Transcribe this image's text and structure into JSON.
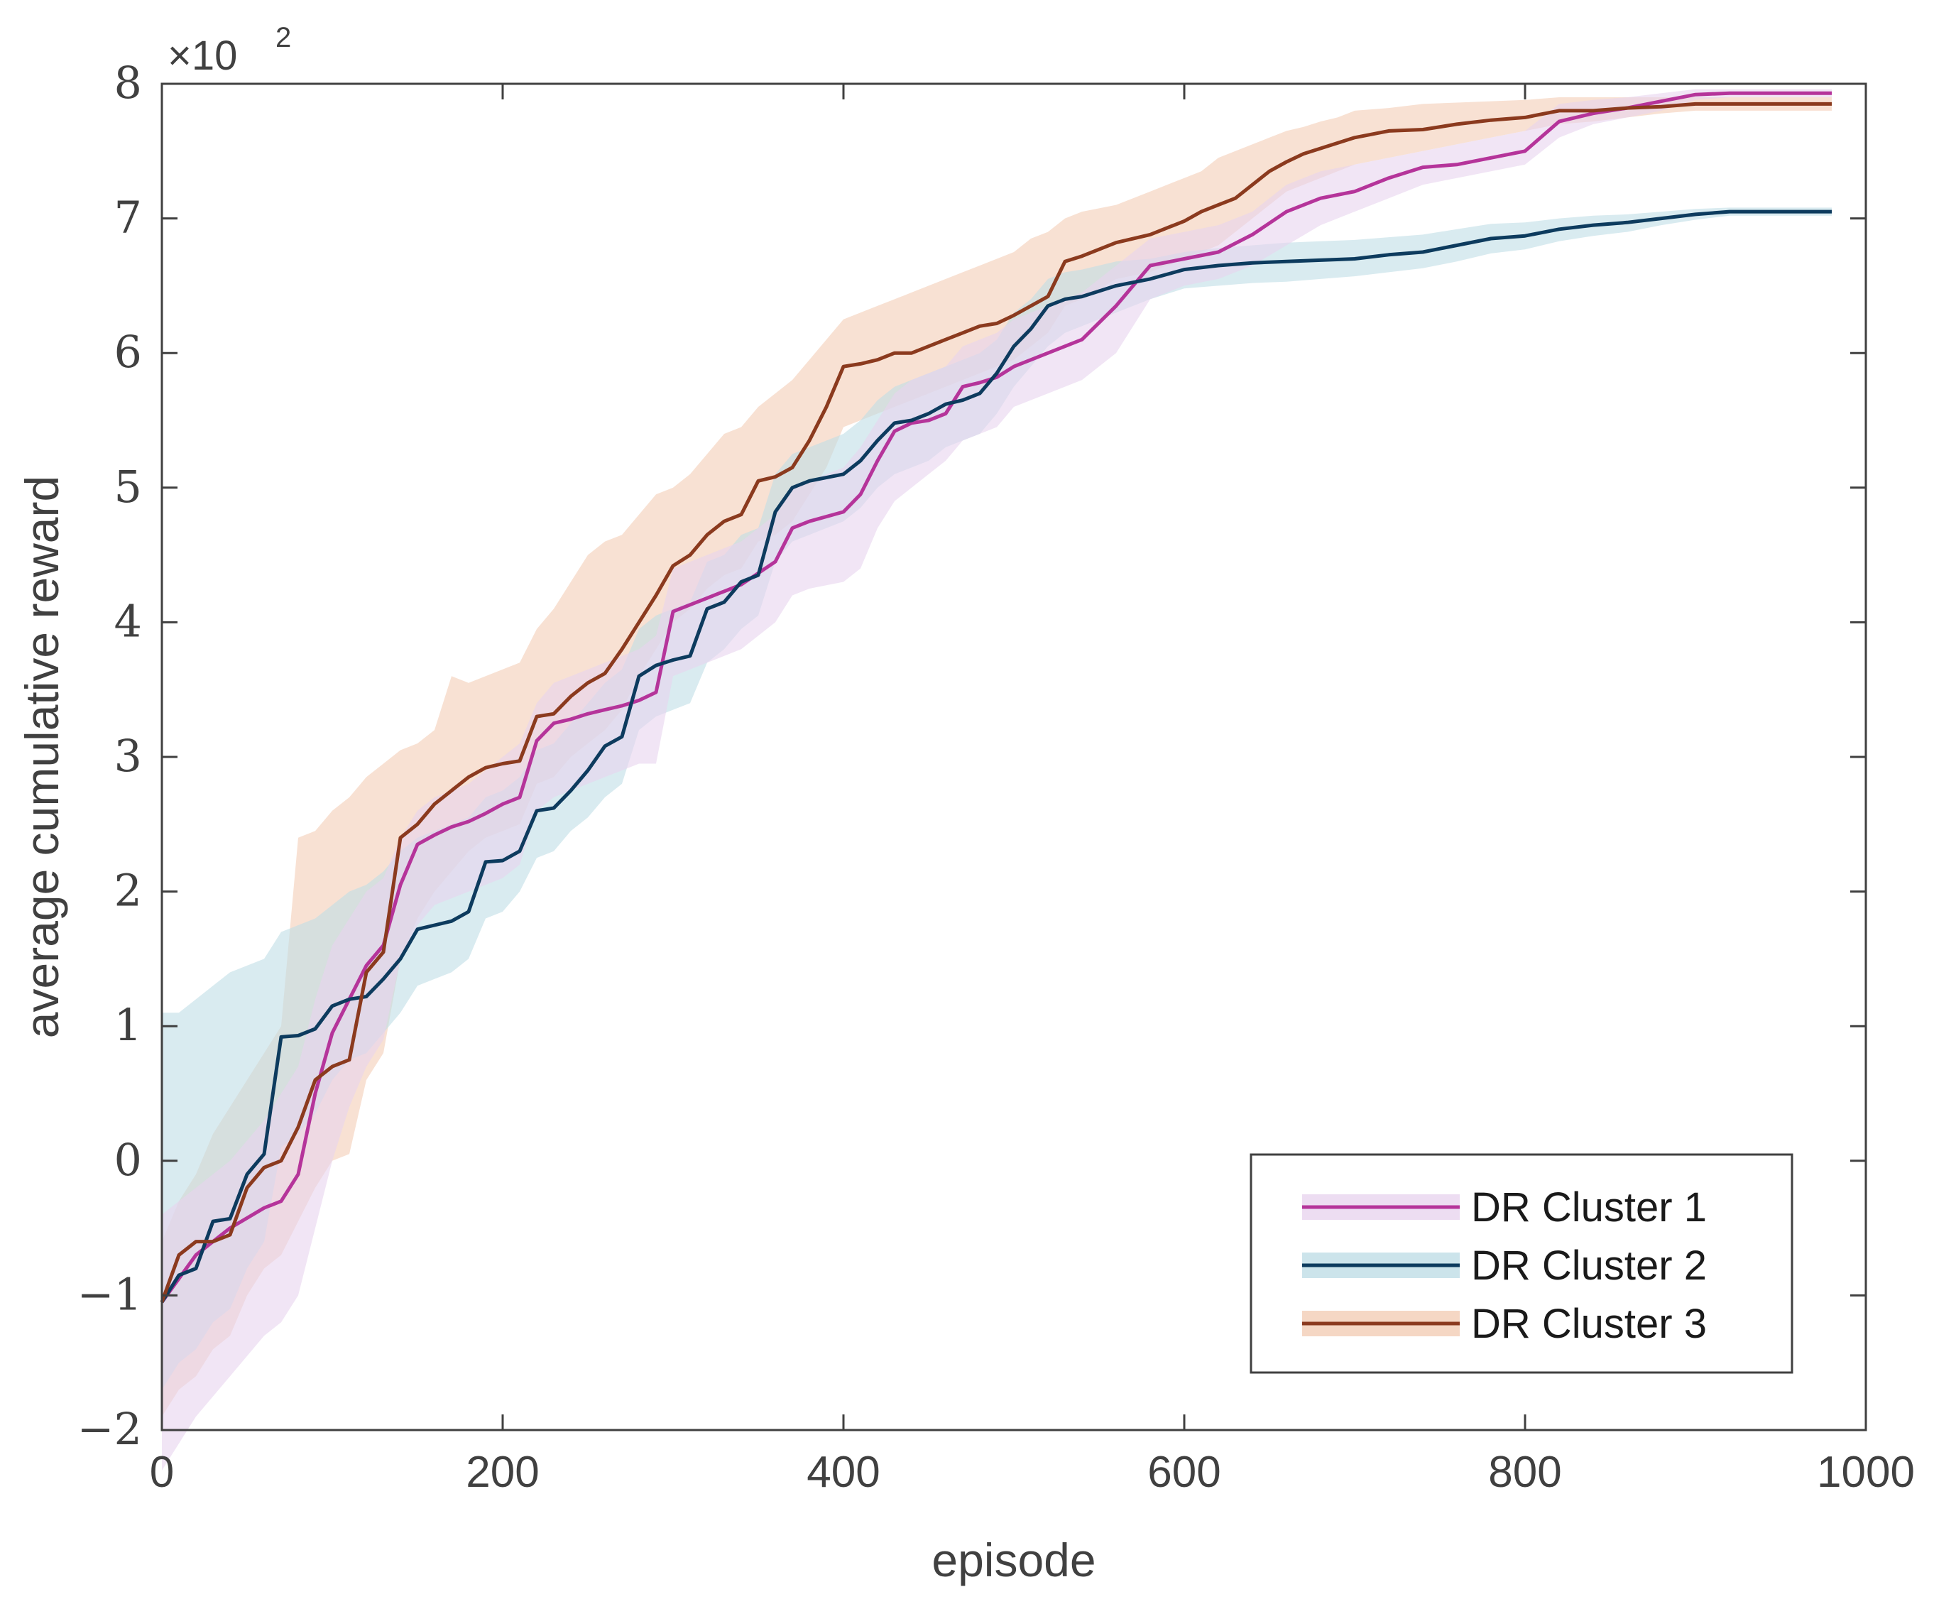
{
  "chart_data": {
    "type": "line",
    "title": "",
    "xlabel": "episode",
    "ylabel": "average cumulative reward",
    "y_multiplier_label": "×10",
    "y_multiplier_exponent": "2",
    "xlim": [
      0,
      1000
    ],
    "ylim": [
      -2,
      8
    ],
    "xticks": [
      0,
      200,
      400,
      600,
      800,
      1000
    ],
    "xtick_labels": [
      "0",
      "200",
      "400",
      "600",
      "800",
      "1000"
    ],
    "yticks": [
      -2,
      -1,
      0,
      1,
      2,
      3,
      4,
      5,
      6,
      7,
      8
    ],
    "ytick_labels": [
      "−2",
      "−1",
      "0",
      "1",
      "2",
      "3",
      "4",
      "5",
      "6",
      "7",
      "8"
    ],
    "grid": false,
    "legend_position": "bottom-right",
    "series": [
      {
        "name": "DR Cluster 1",
        "color": "#b5349a",
        "band_color": "#e8d4ef",
        "x": [
          0,
          20,
          40,
          60,
          70,
          80,
          90,
          100,
          110,
          120,
          130,
          140,
          150,
          160,
          170,
          180,
          190,
          200,
          210,
          220,
          230,
          240,
          250,
          260,
          270,
          280,
          290,
          300,
          320,
          340,
          360,
          370,
          380,
          400,
          410,
          420,
          430,
          440,
          450,
          460,
          470,
          480,
          490,
          500,
          520,
          540,
          560,
          580,
          600,
          620,
          640,
          660,
          680,
          700,
          720,
          740,
          760,
          780,
          800,
          820,
          840,
          860,
          880,
          900,
          920,
          940,
          960,
          980
        ],
        "values": [
          -1.05,
          -0.7,
          -0.5,
          -0.35,
          -0.3,
          -0.1,
          0.5,
          0.95,
          1.2,
          1.45,
          1.6,
          2.05,
          2.35,
          2.42,
          2.48,
          2.52,
          2.58,
          2.65,
          2.7,
          3.12,
          3.25,
          3.28,
          3.32,
          3.35,
          3.38,
          3.42,
          3.48,
          4.08,
          4.18,
          4.28,
          4.45,
          4.7,
          4.75,
          4.82,
          4.95,
          5.2,
          5.42,
          5.48,
          5.5,
          5.55,
          5.75,
          5.78,
          5.82,
          5.9,
          6.0,
          6.1,
          6.35,
          6.65,
          6.7,
          6.75,
          6.88,
          7.05,
          7.15,
          7.2,
          7.3,
          7.38,
          7.4,
          7.45,
          7.5,
          7.72,
          7.78,
          7.82,
          7.87,
          7.92,
          7.93,
          7.93,
          7.93,
          7.93
        ],
        "band_lower": [
          -2.3,
          -1.9,
          -1.6,
          -1.3,
          -1.2,
          -1.0,
          -0.5,
          0.0,
          0.4,
          0.7,
          0.9,
          1.5,
          1.75,
          1.9,
          1.95,
          2.0,
          2.05,
          2.1,
          2.2,
          2.6,
          2.7,
          2.75,
          2.8,
          2.85,
          2.9,
          2.95,
          2.95,
          3.6,
          3.7,
          3.8,
          4.0,
          4.2,
          4.25,
          4.3,
          4.4,
          4.7,
          4.9,
          5.0,
          5.1,
          5.2,
          5.35,
          5.4,
          5.45,
          5.6,
          5.7,
          5.8,
          6.0,
          6.4,
          6.5,
          6.55,
          6.65,
          6.8,
          6.95,
          7.05,
          7.15,
          7.25,
          7.3,
          7.35,
          7.4,
          7.6,
          7.7,
          7.75,
          7.8,
          7.88,
          7.9,
          7.9,
          7.9,
          7.9
        ],
        "band_upper": [
          -0.4,
          -0.2,
          0.0,
          0.3,
          0.5,
          0.7,
          1.2,
          1.6,
          1.8,
          2.0,
          2.1,
          2.4,
          2.6,
          2.7,
          2.75,
          2.8,
          2.9,
          3.0,
          3.1,
          3.4,
          3.55,
          3.6,
          3.65,
          3.7,
          3.75,
          3.8,
          3.9,
          4.4,
          4.5,
          4.6,
          4.8,
          5.0,
          5.05,
          5.15,
          5.3,
          5.5,
          5.7,
          5.8,
          5.85,
          5.9,
          6.05,
          6.1,
          6.15,
          6.25,
          6.35,
          6.45,
          6.65,
          6.85,
          6.9,
          6.95,
          7.05,
          7.25,
          7.35,
          7.4,
          7.45,
          7.5,
          7.55,
          7.6,
          7.65,
          7.85,
          7.88,
          7.9,
          7.93,
          7.96,
          7.96,
          7.96,
          7.96,
          7.96
        ]
      },
      {
        "name": "DR Cluster 2",
        "color": "#0d3b5e",
        "band_color": "#bfdde6",
        "x": [
          0,
          10,
          20,
          30,
          40,
          50,
          60,
          70,
          80,
          90,
          100,
          110,
          120,
          130,
          140,
          150,
          160,
          170,
          180,
          190,
          200,
          210,
          220,
          230,
          240,
          250,
          260,
          270,
          280,
          290,
          300,
          310,
          320,
          330,
          340,
          350,
          360,
          370,
          380,
          400,
          410,
          420,
          430,
          440,
          450,
          460,
          470,
          480,
          490,
          500,
          510,
          520,
          530,
          540,
          560,
          580,
          600,
          620,
          640,
          660,
          680,
          700,
          720,
          740,
          760,
          780,
          800,
          820,
          840,
          860,
          880,
          900,
          920,
          940,
          960,
          980
        ],
        "values": [
          -1.05,
          -0.85,
          -0.8,
          -0.45,
          -0.43,
          -0.1,
          0.05,
          0.92,
          0.93,
          0.98,
          1.15,
          1.2,
          1.22,
          1.35,
          1.5,
          1.72,
          1.75,
          1.78,
          1.85,
          2.22,
          2.23,
          2.3,
          2.6,
          2.62,
          2.75,
          2.9,
          3.08,
          3.15,
          3.6,
          3.68,
          3.72,
          3.75,
          4.1,
          4.15,
          4.3,
          4.35,
          4.82,
          5.0,
          5.05,
          5.1,
          5.2,
          5.35,
          5.48,
          5.5,
          5.55,
          5.62,
          5.65,
          5.7,
          5.85,
          6.05,
          6.18,
          6.35,
          6.4,
          6.42,
          6.5,
          6.55,
          6.62,
          6.65,
          6.67,
          6.68,
          6.69,
          6.7,
          6.73,
          6.75,
          6.8,
          6.85,
          6.87,
          6.92,
          6.95,
          6.97,
          7.0,
          7.03,
          7.05,
          7.05,
          7.05,
          7.05
        ],
        "band_lower": [
          -1.7,
          -1.5,
          -1.4,
          -1.2,
          -1.1,
          -0.8,
          -0.6,
          0.1,
          0.2,
          0.35,
          0.6,
          0.75,
          0.8,
          0.95,
          1.1,
          1.3,
          1.35,
          1.4,
          1.5,
          1.8,
          1.85,
          2.0,
          2.25,
          2.3,
          2.45,
          2.55,
          2.7,
          2.8,
          3.2,
          3.3,
          3.35,
          3.4,
          3.7,
          3.8,
          3.95,
          4.05,
          4.45,
          4.6,
          4.65,
          4.75,
          4.85,
          5.0,
          5.1,
          5.15,
          5.2,
          5.3,
          5.35,
          5.4,
          5.55,
          5.75,
          5.9,
          6.05,
          6.15,
          6.2,
          6.3,
          6.4,
          6.48,
          6.5,
          6.52,
          6.53,
          6.55,
          6.57,
          6.6,
          6.63,
          6.68,
          6.74,
          6.77,
          6.83,
          6.87,
          6.9,
          6.95,
          6.99,
          7.02,
          7.02,
          7.02,
          7.02
        ],
        "band_upper": [
          1.1,
          1.1,
          1.2,
          1.3,
          1.4,
          1.45,
          1.5,
          1.7,
          1.75,
          1.8,
          1.9,
          2.0,
          2.05,
          2.15,
          2.3,
          2.4,
          2.45,
          2.5,
          2.55,
          2.7,
          2.75,
          2.85,
          3.05,
          3.1,
          3.25,
          3.4,
          3.55,
          3.65,
          3.95,
          4.05,
          4.1,
          4.15,
          4.45,
          4.5,
          4.65,
          4.7,
          5.1,
          5.25,
          5.3,
          5.4,
          5.5,
          5.65,
          5.75,
          5.8,
          5.85,
          5.9,
          5.95,
          6.0,
          6.1,
          6.3,
          6.4,
          6.55,
          6.6,
          6.62,
          6.68,
          6.7,
          6.75,
          6.78,
          6.8,
          6.82,
          6.83,
          6.84,
          6.86,
          6.88,
          6.92,
          6.96,
          6.97,
          7.0,
          7.02,
          7.03,
          7.05,
          7.07,
          7.08,
          7.08,
          7.08,
          7.08
        ]
      },
      {
        "name": "DR Cluster 3",
        "color": "#8b3a1e",
        "band_color": "#f3cdb5",
        "x": [
          0,
          10,
          20,
          30,
          40,
          50,
          60,
          70,
          80,
          90,
          100,
          110,
          120,
          130,
          140,
          150,
          160,
          170,
          180,
          190,
          200,
          210,
          220,
          230,
          240,
          250,
          260,
          270,
          280,
          290,
          300,
          310,
          320,
          330,
          340,
          350,
          360,
          370,
          380,
          390,
          400,
          410,
          420,
          430,
          440,
          450,
          460,
          470,
          480,
          490,
          500,
          510,
          520,
          530,
          540,
          560,
          580,
          600,
          610,
          620,
          630,
          640,
          650,
          660,
          670,
          680,
          690,
          700,
          720,
          740,
          760,
          780,
          800,
          820,
          840,
          860,
          880,
          900,
          920,
          940,
          960,
          980
        ],
        "values": [
          -1.05,
          -0.7,
          -0.6,
          -0.6,
          -0.55,
          -0.2,
          -0.05,
          0.0,
          0.25,
          0.6,
          0.7,
          0.75,
          1.4,
          1.55,
          2.4,
          2.5,
          2.65,
          2.75,
          2.85,
          2.92,
          2.95,
          2.97,
          3.3,
          3.32,
          3.45,
          3.55,
          3.62,
          3.8,
          4.0,
          4.2,
          4.42,
          4.5,
          4.65,
          4.75,
          4.8,
          5.05,
          5.08,
          5.15,
          5.35,
          5.6,
          5.9,
          5.92,
          5.95,
          6.0,
          6.0,
          6.05,
          6.1,
          6.15,
          6.2,
          6.22,
          6.28,
          6.35,
          6.42,
          6.68,
          6.72,
          6.82,
          6.88,
          6.98,
          7.05,
          7.1,
          7.15,
          7.25,
          7.35,
          7.42,
          7.48,
          7.52,
          7.56,
          7.6,
          7.65,
          7.66,
          7.7,
          7.73,
          7.75,
          7.8,
          7.8,
          7.82,
          7.83,
          7.85,
          7.85,
          7.85,
          7.85,
          7.85
        ],
        "band_lower": [
          -1.9,
          -1.7,
          -1.6,
          -1.4,
          -1.3,
          -1.0,
          -0.8,
          -0.7,
          -0.45,
          -0.2,
          0.0,
          0.05,
          0.6,
          0.8,
          1.5,
          1.8,
          2.0,
          2.15,
          2.3,
          2.4,
          2.45,
          2.5,
          2.8,
          2.85,
          3.0,
          3.1,
          3.2,
          3.35,
          3.6,
          3.8,
          4.0,
          4.1,
          4.25,
          4.35,
          4.4,
          4.6,
          4.65,
          4.75,
          4.95,
          5.15,
          5.45,
          5.5,
          5.55,
          5.6,
          5.65,
          5.7,
          5.75,
          5.8,
          5.85,
          5.9,
          5.95,
          6.05,
          6.15,
          6.35,
          6.4,
          6.55,
          6.6,
          6.7,
          6.75,
          6.8,
          6.9,
          7.0,
          7.1,
          7.2,
          7.25,
          7.3,
          7.35,
          7.4,
          7.45,
          7.5,
          7.55,
          7.6,
          7.65,
          7.7,
          7.72,
          7.75,
          7.78,
          7.8,
          7.8,
          7.8,
          7.8,
          7.8
        ],
        "band_upper": [
          -0.6,
          -0.3,
          -0.1,
          0.2,
          0.4,
          0.6,
          0.8,
          1.0,
          2.4,
          2.45,
          2.6,
          2.7,
          2.85,
          2.95,
          3.05,
          3.1,
          3.2,
          3.6,
          3.55,
          3.6,
          3.65,
          3.7,
          3.95,
          4.1,
          4.3,
          4.5,
          4.6,
          4.65,
          4.8,
          4.95,
          5.0,
          5.1,
          5.25,
          5.4,
          5.45,
          5.6,
          5.7,
          5.8,
          5.95,
          6.1,
          6.25,
          6.3,
          6.35,
          6.4,
          6.45,
          6.5,
          6.55,
          6.6,
          6.65,
          6.7,
          6.75,
          6.85,
          6.9,
          7.0,
          7.05,
          7.1,
          7.2,
          7.3,
          7.35,
          7.45,
          7.5,
          7.55,
          7.6,
          7.65,
          7.68,
          7.72,
          7.75,
          7.8,
          7.82,
          7.85,
          7.86,
          7.87,
          7.88,
          7.9,
          7.9,
          7.9,
          7.9,
          7.9,
          7.9,
          7.9,
          7.9,
          7.9
        ]
      }
    ]
  }
}
